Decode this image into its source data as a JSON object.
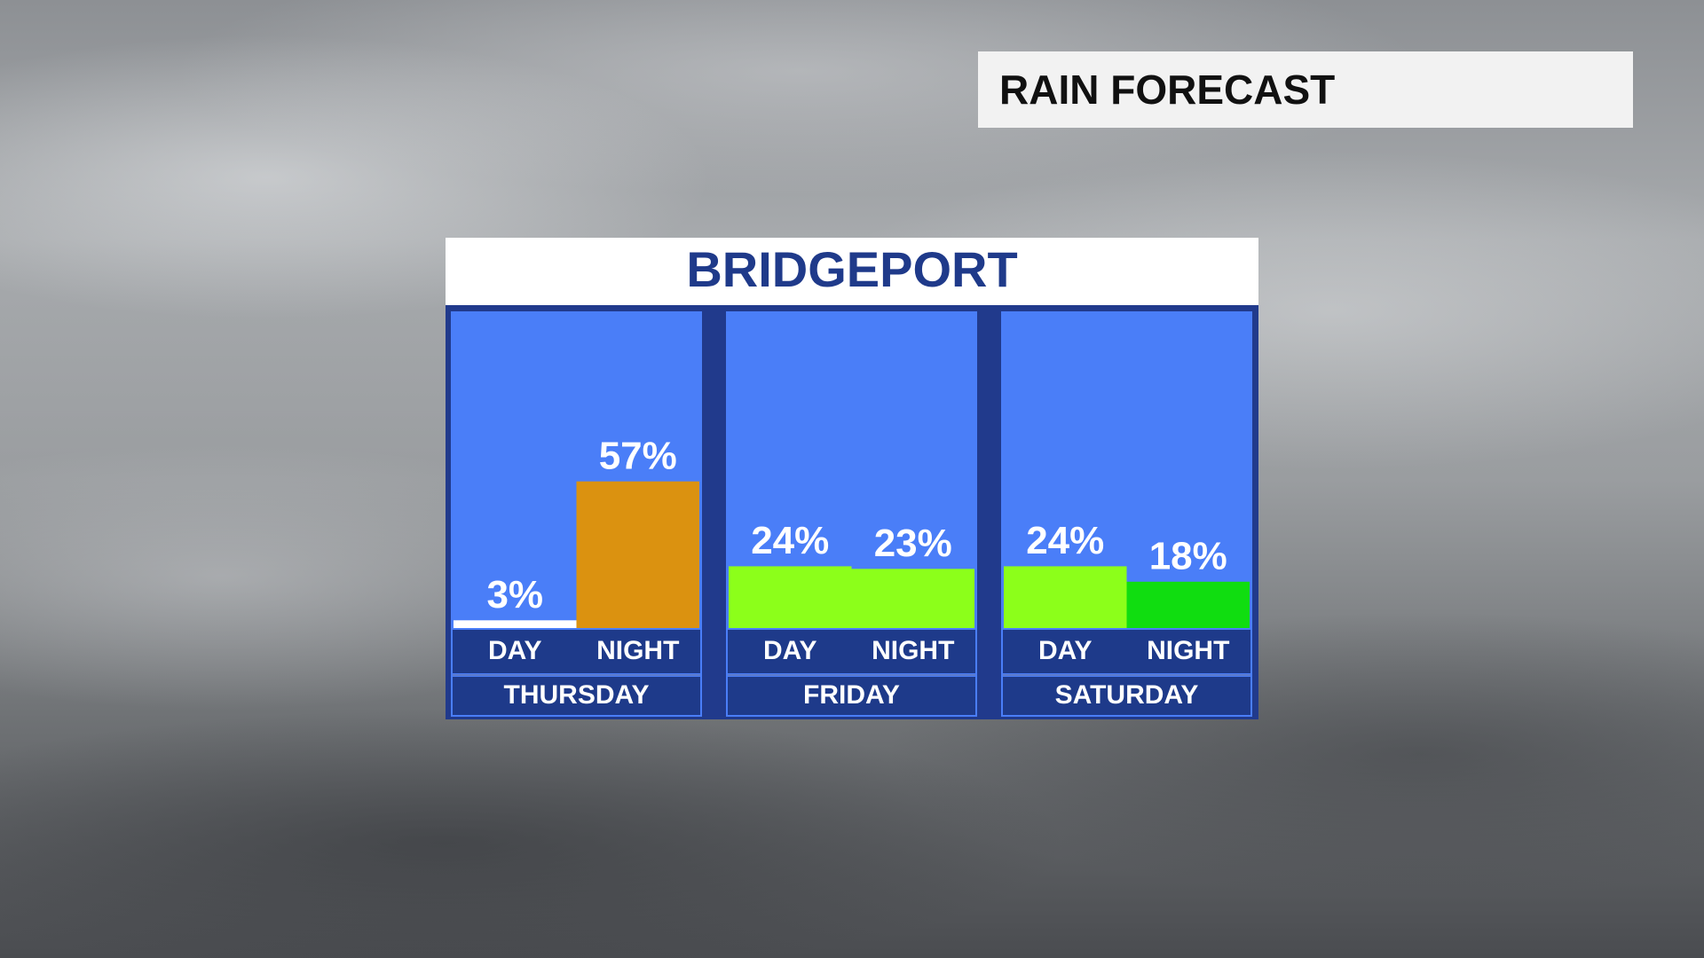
{
  "header": {
    "title": "RAIN FORECAST"
  },
  "chart_data": {
    "type": "bar",
    "title": "BRIDGEPORT",
    "groups": [
      {
        "name": "THURSDAY",
        "categories": [
          "DAY",
          "NIGHT"
        ],
        "values": [
          3,
          57
        ],
        "value_labels": [
          "3%",
          "57%"
        ],
        "colors": [
          "#ffffff",
          "#db9210"
        ]
      },
      {
        "name": "FRIDAY",
        "categories": [
          "DAY",
          "NIGHT"
        ],
        "values": [
          24,
          23
        ],
        "value_labels": [
          "24%",
          "23%"
        ],
        "colors": [
          "#8cff1a",
          "#8cff1a"
        ]
      },
      {
        "name": "SATURDAY",
        "categories": [
          "DAY",
          "NIGHT"
        ],
        "values": [
          24,
          18
        ],
        "value_labels": [
          "24%",
          "18%"
        ],
        "colors": [
          "#8cff1a",
          "#10dd10"
        ]
      }
    ]
  }
}
